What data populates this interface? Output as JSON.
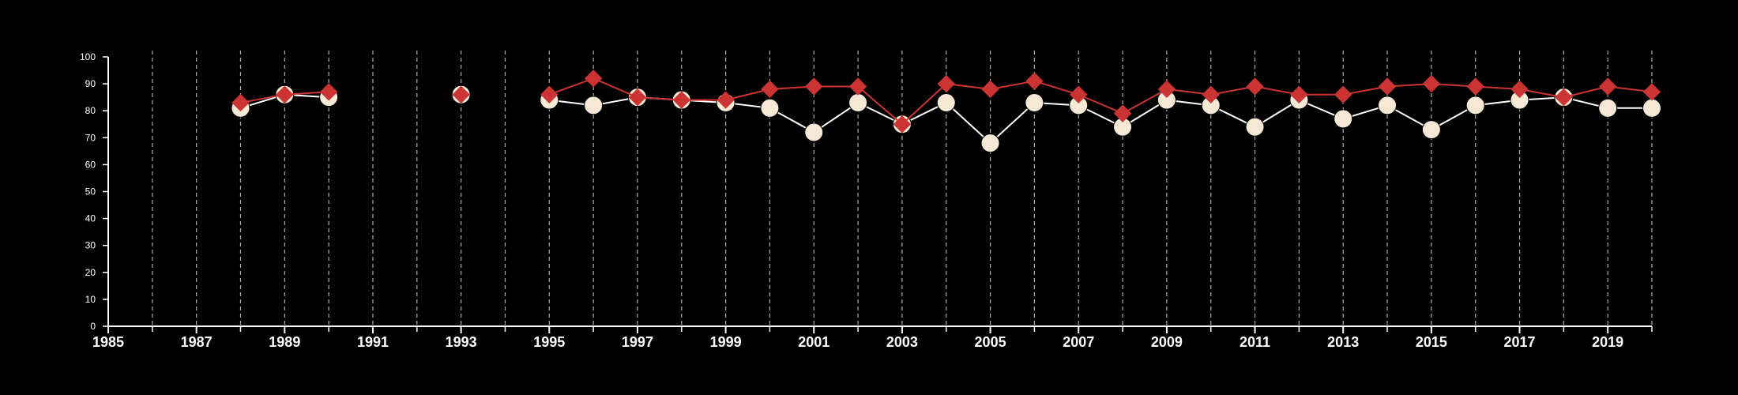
{
  "chart_data": {
    "type": "line",
    "title": "",
    "xlabel": "",
    "ylabel": "",
    "xlim": [
      1985,
      2020
    ],
    "ylim": [
      0,
      100
    ],
    "y_ticks": [
      0,
      10,
      20,
      30,
      40,
      50,
      60,
      70,
      80,
      90,
      100
    ],
    "x_tick_labels": [
      1985,
      1987,
      1989,
      1991,
      1993,
      1995,
      1997,
      1999,
      2001,
      2003,
      2005,
      2007,
      2009,
      2011,
      2013,
      2015,
      2017,
      2019
    ],
    "x_minor_ticks": [
      1986,
      1988,
      1990,
      1992,
      1994,
      1996,
      1998,
      2000,
      2002,
      2004,
      2006,
      2008,
      2010,
      2012,
      2014,
      2016,
      2018,
      2020
    ],
    "vertical_grid": "dashed, every year",
    "background": "#000000",
    "series": [
      {
        "marker": "circle",
        "color": "#f5e9d6",
        "line_color": "#ffffff",
        "points": [
          {
            "x": 1988,
            "y": 81
          },
          {
            "x": 1989,
            "y": 86
          },
          {
            "x": 1990,
            "y": 85
          },
          {
            "x": 1993,
            "y": 86
          },
          {
            "x": 1995,
            "y": 84
          },
          {
            "x": 1996,
            "y": 82
          },
          {
            "x": 1997,
            "y": 85
          },
          {
            "x": 1998,
            "y": 84
          },
          {
            "x": 1999,
            "y": 83
          },
          {
            "x": 2000,
            "y": 81
          },
          {
            "x": 2001,
            "y": 72
          },
          {
            "x": 2002,
            "y": 83
          },
          {
            "x": 2003,
            "y": 75
          },
          {
            "x": 2004,
            "y": 83
          },
          {
            "x": 2005,
            "y": 68
          },
          {
            "x": 2006,
            "y": 83
          },
          {
            "x": 2007,
            "y": 82
          },
          {
            "x": 2008,
            "y": 74
          },
          {
            "x": 2009,
            "y": 84
          },
          {
            "x": 2010,
            "y": 82
          },
          {
            "x": 2011,
            "y": 74
          },
          {
            "x": 2012,
            "y": 84
          },
          {
            "x": 2013,
            "y": 77
          },
          {
            "x": 2014,
            "y": 82
          },
          {
            "x": 2015,
            "y": 73
          },
          {
            "x": 2016,
            "y": 82
          },
          {
            "x": 2017,
            "y": 84
          },
          {
            "x": 2018,
            "y": 85
          },
          {
            "x": 2019,
            "y": 81
          },
          {
            "x": 2020,
            "y": 81
          }
        ]
      },
      {
        "marker": "diamond",
        "color": "#cc3333",
        "line_color": "#cc3333",
        "points": [
          {
            "x": 1988,
            "y": 83
          },
          {
            "x": 1989,
            "y": 86
          },
          {
            "x": 1990,
            "y": 87
          },
          {
            "x": 1993,
            "y": 86
          },
          {
            "x": 1995,
            "y": 86
          },
          {
            "x": 1996,
            "y": 92
          },
          {
            "x": 1997,
            "y": 85
          },
          {
            "x": 1998,
            "y": 84
          },
          {
            "x": 1999,
            "y": 84
          },
          {
            "x": 2000,
            "y": 88
          },
          {
            "x": 2001,
            "y": 89
          },
          {
            "x": 2002,
            "y": 89
          },
          {
            "x": 2003,
            "y": 75
          },
          {
            "x": 2004,
            "y": 90
          },
          {
            "x": 2005,
            "y": 88
          },
          {
            "x": 2006,
            "y": 91
          },
          {
            "x": 2007,
            "y": 86
          },
          {
            "x": 2008,
            "y": 79
          },
          {
            "x": 2009,
            "y": 88
          },
          {
            "x": 2010,
            "y": 86
          },
          {
            "x": 2011,
            "y": 89
          },
          {
            "x": 2012,
            "y": 86
          },
          {
            "x": 2013,
            "y": 86
          },
          {
            "x": 2014,
            "y": 89
          },
          {
            "x": 2015,
            "y": 90
          },
          {
            "x": 2016,
            "y": 89
          },
          {
            "x": 2017,
            "y": 88
          },
          {
            "x": 2018,
            "y": 85
          },
          {
            "x": 2019,
            "y": 89
          },
          {
            "x": 2020,
            "y": 87
          }
        ]
      }
    ]
  }
}
